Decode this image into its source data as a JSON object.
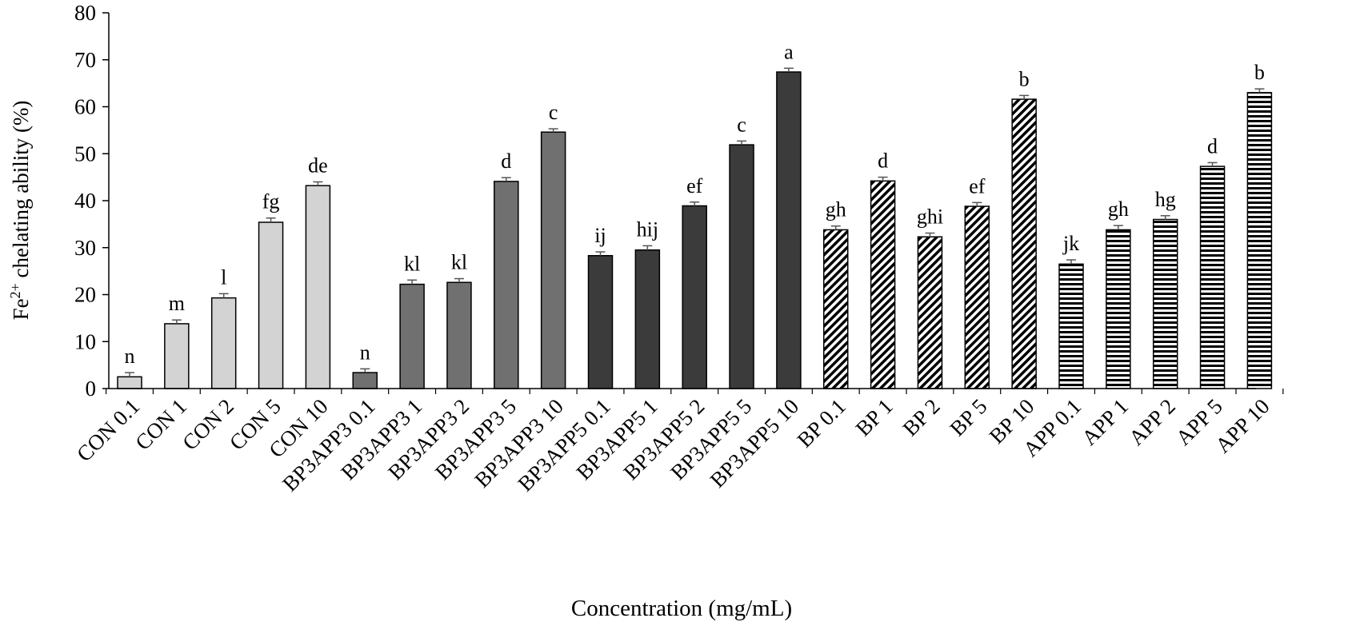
{
  "chart_data": {
    "type": "bar",
    "ylabel_base": "Fe",
    "ylabel_sup": "2+",
    "ylabel_rest": " chelating ability (%)",
    "xlabel": "Concentration (mg/mL)",
    "ylim": [
      0,
      80
    ],
    "yticks": [
      "0",
      "10",
      "20",
      "30",
      "40",
      "50",
      "60",
      "70",
      "80"
    ],
    "categories": [
      "CON 0.1",
      "CON 1",
      "CON 2",
      "CON 5",
      "CON 10",
      "BP3APP3 0.1",
      "BP3APP3 1",
      "BP3APP3 2",
      "BP3APP3 5",
      "BP3APP3 10",
      "BP3APP5 0.1",
      "BP3APP5 1",
      "BP3APP5 2",
      "BP3APP5 5",
      "BP3APP5 10",
      "BP 0.1",
      "BP 1",
      "BP 2",
      "BP 5",
      "BP 10",
      "APP 0.1",
      "APP 1",
      "APP 2",
      "APP 5",
      "APP 10"
    ],
    "values": [
      2.5,
      13.8,
      19.3,
      35.4,
      43.2,
      3.4,
      22.2,
      22.6,
      44.1,
      54.6,
      28.3,
      29.5,
      38.9,
      51.9,
      67.4,
      33.8,
      44.2,
      32.3,
      38.8,
      61.6,
      26.5,
      33.8,
      36.0,
      47.3,
      63.0
    ],
    "errors": [
      0.9,
      0.8,
      0.9,
      0.9,
      0.8,
      0.8,
      0.9,
      0.8,
      0.8,
      0.7,
      0.8,
      0.9,
      0.8,
      0.8,
      0.8,
      0.8,
      0.8,
      0.8,
      0.8,
      0.8,
      0.9,
      0.9,
      0.8,
      0.8,
      0.8
    ],
    "significance": [
      "n",
      "m",
      "l",
      "fg",
      "de",
      "n",
      "kl",
      "kl",
      "d",
      "c",
      "ij",
      "hij",
      "ef",
      "c",
      "a",
      "gh",
      "d",
      "ghi",
      "ef",
      "b",
      "jk",
      "gh",
      "hg",
      "d",
      "b"
    ],
    "groups": [
      "CON",
      "CON",
      "CON",
      "CON",
      "CON",
      "BP3APP3",
      "BP3APP3",
      "BP3APP3",
      "BP3APP3",
      "BP3APP3",
      "BP3APP5",
      "BP3APP5",
      "BP3APP5",
      "BP3APP5",
      "BP3APP5",
      "BP",
      "BP",
      "BP",
      "BP",
      "BP",
      "APP",
      "APP",
      "APP",
      "APP",
      "APP"
    ],
    "group_fills": {
      "CON": "#d3d3d3",
      "BP3APP3": "#707070",
      "BP3APP5": "#3b3b3b",
      "BP": "pattern-diagonal",
      "APP": "pattern-horizontal"
    }
  }
}
